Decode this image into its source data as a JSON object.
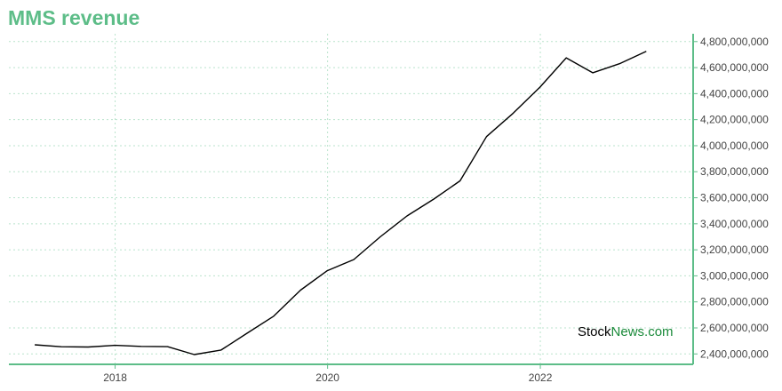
{
  "colors": {
    "accent": "#5dbd88",
    "line": "#000000",
    "grid": "#b9e3cc",
    "watermark_dark": "#000000",
    "watermark_green": "#1a8a3a"
  },
  "watermark": {
    "part1": "Stock",
    "part2": "News",
    "part3": ".com"
  },
  "chart_data": {
    "type": "line",
    "title": "MMS revenue",
    "xlabel": "",
    "ylabel": "",
    "grid": true,
    "y_axis_side": "right",
    "xlim": [
      "2017-01-01",
      "2023-06-10"
    ],
    "ylim": [
      2320000000,
      4860000000
    ],
    "x_ticks": [
      {
        "value": "2018-01-01",
        "label": "2018"
      },
      {
        "value": "2020-01-01",
        "label": "2020"
      },
      {
        "value": "2022-01-01",
        "label": "2022"
      }
    ],
    "y_ticks": [
      {
        "value": 2400000000,
        "label": "2,400,000,000"
      },
      {
        "value": 2600000000,
        "label": "2,600,000,000"
      },
      {
        "value": 2800000000,
        "label": "2,800,000,000"
      },
      {
        "value": 3000000000,
        "label": "3,000,000,000"
      },
      {
        "value": 3200000000,
        "label": "3,200,000,000"
      },
      {
        "value": 3400000000,
        "label": "3,400,000,000"
      },
      {
        "value": 3600000000,
        "label": "3,600,000,000"
      },
      {
        "value": 3800000000,
        "label": "3,800,000,000"
      },
      {
        "value": 4000000000,
        "label": "4,000,000,000"
      },
      {
        "value": 4200000000,
        "label": "4,200,000,000"
      },
      {
        "value": 4400000000,
        "label": "4,400,000,000"
      },
      {
        "value": 4600000000,
        "label": "4,600,000,000"
      },
      {
        "value": 4800000000,
        "label": "4,800,000,000"
      }
    ],
    "series": [
      {
        "x": [
          "2017-03-31",
          "2017-06-30",
          "2017-09-30",
          "2017-12-31",
          "2018-03-31",
          "2018-06-30",
          "2018-09-30",
          "2018-12-31",
          "2019-03-31",
          "2019-06-30",
          "2019-09-30",
          "2019-12-31",
          "2020-03-31",
          "2020-06-30",
          "2020-09-30",
          "2020-12-31",
          "2021-03-31",
          "2021-06-30",
          "2021-09-30",
          "2021-12-31",
          "2022-03-31",
          "2022-06-30",
          "2022-09-30",
          "2022-12-31"
        ],
        "y": [
          2470000000,
          2455000000,
          2453000000,
          2466000000,
          2458000000,
          2456000000,
          2395000000,
          2430000000,
          2560000000,
          2690000000,
          2890000000,
          3040000000,
          3125000000,
          3300000000,
          3460000000,
          3590000000,
          3730000000,
          4070000000,
          4250000000,
          4450000000,
          4675000000,
          4560000000,
          4630000000,
          4725000000
        ]
      }
    ]
  }
}
